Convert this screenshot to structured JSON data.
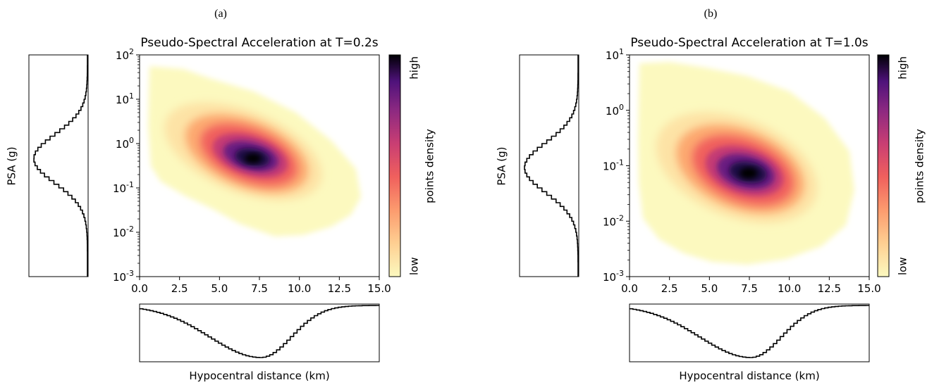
{
  "panels": [
    {
      "label": "(a)",
      "chart_data": {
        "type": "heatmap",
        "title": "Pseudo-Spectral Acceleration at T=0.2s",
        "xlabel": "Hypocentral distance (km)",
        "ylabel": "PSA (g)",
        "x_ticks": [
          "0.0",
          "2.5",
          "5.0",
          "7.5",
          "10.0",
          "12.5",
          "15.0"
        ],
        "y_ticks": [
          {
            "base": "10",
            "exp": "2"
          },
          {
            "base": "10",
            "exp": "1"
          },
          {
            "base": "10",
            "exp": "0"
          },
          {
            "base": "10",
            "exp": "-1"
          },
          {
            "base": "10",
            "exp": "-2"
          },
          {
            "base": "10",
            "exp": "-3"
          }
        ],
        "xlim": [
          0,
          15
        ],
        "ylim_log10": [
          -3,
          2
        ],
        "y_scale": "log",
        "density_peak": {
          "x": 7.0,
          "y": 0.4
        },
        "density_spread": {
          "x_km": 2.7,
          "y_decades": 0.6
        },
        "colorbar": {
          "label": "points density",
          "high": "high",
          "low": "low",
          "colormap": "magma_r"
        },
        "marginal_x": {
          "mode_km": 7.5,
          "min_km": 0.5,
          "max_km": 14.0
        },
        "marginal_y": {
          "mode": 0.5,
          "log10_center": -0.3,
          "log10_sigma": 0.55
        }
      }
    },
    {
      "label": "(b)",
      "chart_data": {
        "type": "heatmap",
        "title": "Pseudo-Spectral Acceleration at T=1.0s",
        "xlabel": "Hypocentral distance (km)",
        "ylabel": "PSA (g)",
        "x_ticks": [
          "0.0",
          "2.5",
          "5.0",
          "7.5",
          "10.0",
          "12.5",
          "15.0"
        ],
        "y_ticks": [
          {
            "base": "10",
            "exp": "1"
          },
          {
            "base": "10",
            "exp": "0"
          },
          {
            "base": "10",
            "exp": "-1"
          },
          {
            "base": "10",
            "exp": "-2"
          },
          {
            "base": "10",
            "exp": "-3"
          }
        ],
        "xlim": [
          0,
          15
        ],
        "ylim_log10": [
          -3,
          1
        ],
        "y_scale": "log",
        "density_peak": {
          "x": 7.2,
          "y": 0.07
        },
        "density_spread": {
          "x_km": 2.7,
          "y_decades": 0.5
        },
        "colorbar": {
          "label": "points density",
          "high": "high",
          "low": "low",
          "colormap": "magma_r"
        },
        "marginal_x": {
          "mode_km": 7.5,
          "min_km": 0.5,
          "max_km": 14.0
        },
        "marginal_y": {
          "mode": 0.1,
          "log10_center": -1.0,
          "log10_sigma": 0.45
        }
      }
    }
  ]
}
